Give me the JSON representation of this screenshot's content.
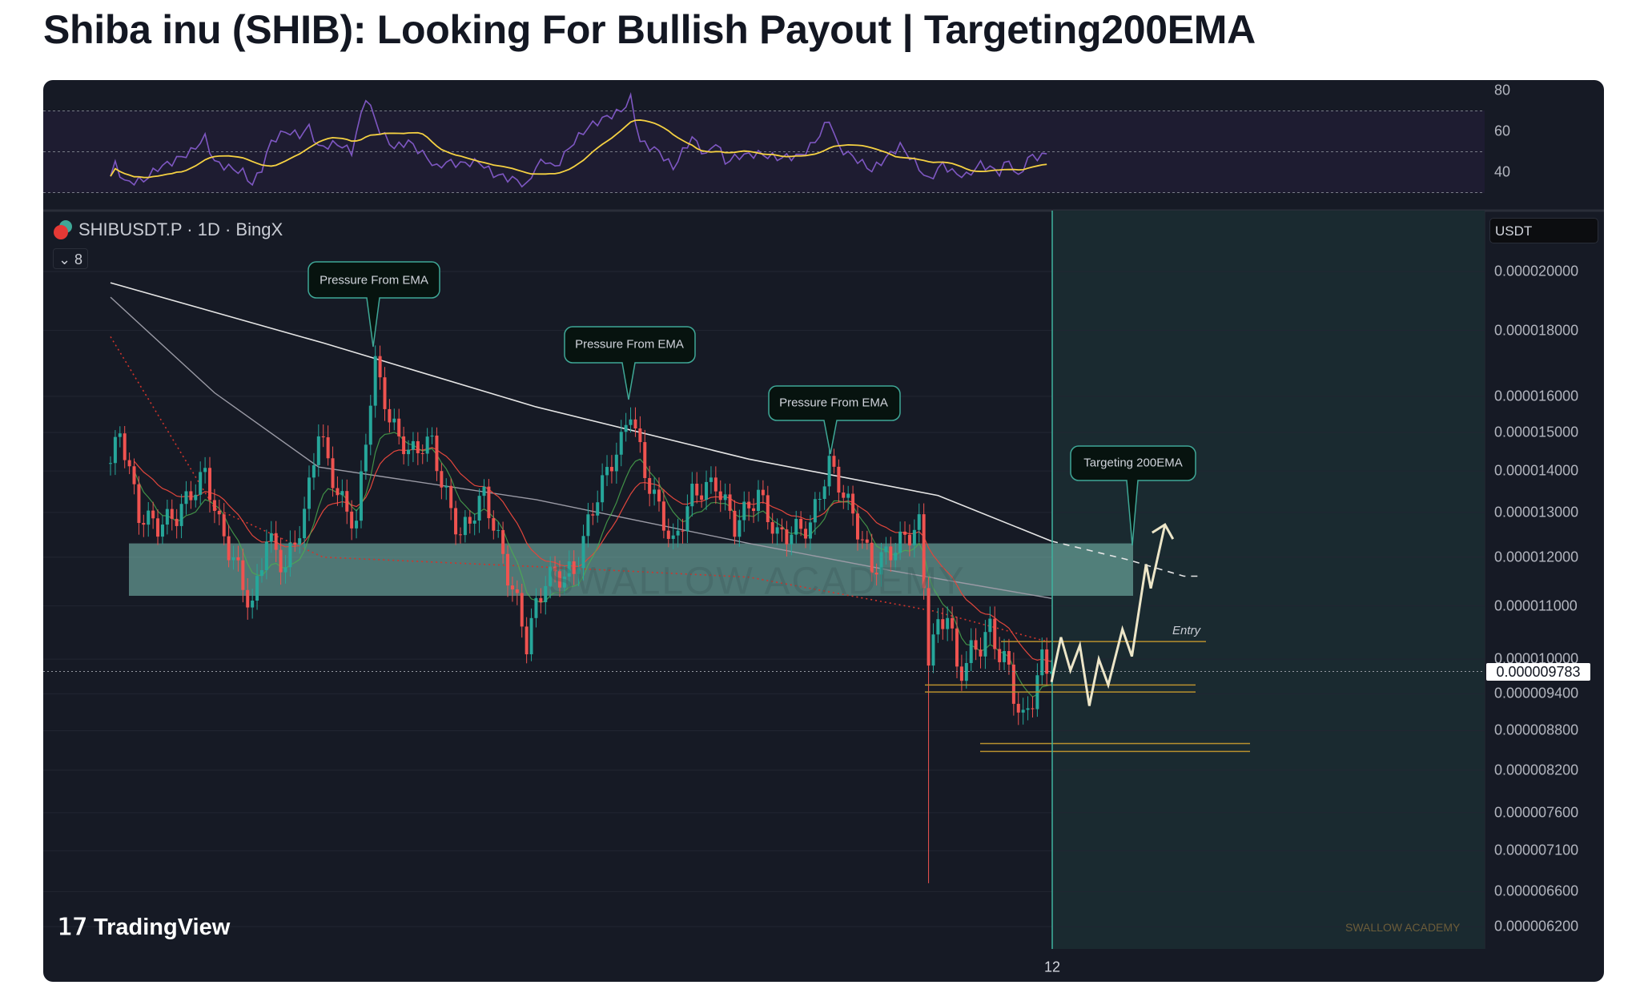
{
  "title": "Shiba inu (SHIB): Looking For Bullish Payout | Targeting200EMA",
  "legend": {
    "symbol": "SHIBUSDT.P · 1D · BingX",
    "indicator_count": "8",
    "currency": "USDT"
  },
  "current_price": "0.000009783",
  "annotations": {
    "pressure_1": "Pressure From EMA",
    "pressure_2": "Pressure From EMA",
    "pressure_3": "Pressure From EMA",
    "target": "Targeting 200EMA",
    "entry": "Entry",
    "watermark": "SWALLOW ACADEMY",
    "watermark_small": "SWALLOW ACADEMY"
  },
  "branding": {
    "logo": "TradingView"
  },
  "colors": {
    "up": "#26a69a",
    "down": "#ef5350",
    "rsi": "#7e57c2",
    "rsi_signal": "#f5d142",
    "zone": "#7fc4b8",
    "level": "#b8902e"
  },
  "chart_data": [
    {
      "type": "candlestick",
      "title": "SHIBUSDT.P · 1D · BingX",
      "ylabel": "USDT",
      "yscale": "log",
      "ylim": [
        6e-06,
        2.1e-05
      ],
      "y_ticks": [
        "0.000020000",
        "0.000018000",
        "0.000016000",
        "0.000015000",
        "0.000014000",
        "0.000013000",
        "0.000012000",
        "0.000011000",
        "0.000010000",
        "0.000009400",
        "0.000008800",
        "0.000008200",
        "0.000007600",
        "0.000007100",
        "0.000006600",
        "0.000006200"
      ],
      "x_ticks": [
        "12"
      ],
      "close_anchors_day_price_e9": [
        [
          0,
          14200
        ],
        [
          2,
          15040
        ],
        [
          6,
          12940
        ],
        [
          10,
          12700
        ],
        [
          14,
          12940
        ],
        [
          20,
          13940
        ],
        [
          23,
          12700
        ],
        [
          30,
          10930
        ],
        [
          33,
          12450
        ],
        [
          37,
          11770
        ],
        [
          41,
          12940
        ],
        [
          44,
          15040
        ],
        [
          48,
          13430
        ],
        [
          52,
          12700
        ],
        [
          56,
          16980
        ],
        [
          59,
          15330
        ],
        [
          63,
          14470
        ],
        [
          68,
          14760
        ],
        [
          70,
          13690
        ],
        [
          74,
          12450
        ],
        [
          79,
          13430
        ],
        [
          83,
          12000
        ],
        [
          88,
          10330
        ],
        [
          92,
          11560
        ],
        [
          98,
          11670
        ],
        [
          103,
          13430
        ],
        [
          108,
          14760
        ],
        [
          110,
          15610
        ],
        [
          113,
          13940
        ],
        [
          119,
          12230
        ],
        [
          123,
          13430
        ],
        [
          128,
          13690
        ],
        [
          132,
          12700
        ],
        [
          137,
          13430
        ],
        [
          141,
          12450
        ],
        [
          148,
          12700
        ],
        [
          152,
          14200
        ],
        [
          157,
          12940
        ],
        [
          161,
          11770
        ],
        [
          166,
          12230
        ],
        [
          171,
          12700
        ],
        [
          173,
          10130
        ],
        [
          177,
          10930
        ],
        [
          179,
          9760
        ],
        [
          186,
          10520
        ],
        [
          190,
          9760
        ],
        [
          193,
          8880
        ],
        [
          197,
          9930
        ],
        [
          199,
          9783
        ]
      ],
      "long_wick": {
        "day": 173,
        "low_e9": 6700
      },
      "ema200_day_price_e9": [
        [
          0,
          19600
        ],
        [
          45,
          17600
        ],
        [
          90,
          15700
        ],
        [
          135,
          14300
        ],
        [
          175,
          13400
        ],
        [
          199,
          12350
        ],
        [
          215,
          11950
        ],
        [
          227,
          11600
        ],
        [
          230,
          11600
        ]
      ],
      "ema_grey_day_price_e9": [
        [
          0,
          19100
        ],
        [
          22,
          16100
        ],
        [
          44,
          14100
        ],
        [
          90,
          13300
        ],
        [
          135,
          12300
        ],
        [
          166,
          11700
        ],
        [
          199,
          11150
        ]
      ],
      "ema_red_dotted_day_price_e9": [
        [
          0,
          17800
        ],
        [
          22,
          13100
        ],
        [
          45,
          12000
        ],
        [
          90,
          11800
        ],
        [
          135,
          11580
        ],
        [
          174,
          10900
        ],
        [
          199,
          10300
        ]
      ],
      "support_zone_e9": [
        11200,
        12300
      ],
      "entry_level_e9": 10320,
      "levels_e9": [
        9550,
        9430,
        8600,
        8480
      ],
      "projection_day_price_e9": [
        [
          199,
          9600
        ],
        [
          201,
          10400
        ],
        [
          203,
          9800
        ],
        [
          205,
          10250
        ],
        [
          207,
          9200
        ],
        [
          209,
          10000
        ],
        [
          211,
          9550
        ],
        [
          214,
          10550
        ],
        [
          216,
          10050
        ],
        [
          219,
          11850
        ],
        [
          220,
          11350
        ],
        [
          223,
          12720
        ]
      ]
    },
    {
      "type": "line",
      "title": "RSI",
      "ylim": [
        20,
        85
      ],
      "y_ticks": [
        "80",
        "60",
        "40"
      ],
      "bands": [
        30,
        50,
        70
      ],
      "rsi_day_value": [
        [
          0,
          38
        ],
        [
          1,
          44
        ],
        [
          3,
          35
        ],
        [
          7,
          36
        ],
        [
          10,
          42
        ],
        [
          13,
          45
        ],
        [
          17,
          50
        ],
        [
          20,
          57
        ],
        [
          22,
          45
        ],
        [
          24,
          43
        ],
        [
          28,
          40
        ],
        [
          30,
          34
        ],
        [
          32,
          42
        ],
        [
          34,
          55
        ],
        [
          37,
          60
        ],
        [
          40,
          58
        ],
        [
          42,
          62
        ],
        [
          44,
          52
        ],
        [
          48,
          54
        ],
        [
          51,
          50
        ],
        [
          54,
          77
        ],
        [
          57,
          60
        ],
        [
          60,
          52
        ],
        [
          63,
          55
        ],
        [
          67,
          47
        ],
        [
          69,
          42
        ],
        [
          71,
          45
        ],
        [
          74,
          44
        ],
        [
          78,
          45
        ],
        [
          81,
          39
        ],
        [
          86,
          36
        ],
        [
          88,
          33
        ],
        [
          90,
          43
        ],
        [
          92,
          46
        ],
        [
          94,
          42
        ],
        [
          98,
          55
        ],
        [
          101,
          62
        ],
        [
          104,
          66
        ],
        [
          108,
          70
        ],
        [
          110,
          76
        ],
        [
          112,
          55
        ],
        [
          116,
          50
        ],
        [
          119,
          42
        ],
        [
          121,
          50
        ],
        [
          123,
          57
        ],
        [
          126,
          48
        ],
        [
          128,
          55
        ],
        [
          130,
          45
        ],
        [
          133,
          48
        ],
        [
          137,
          49
        ],
        [
          141,
          47
        ],
        [
          146,
          48
        ],
        [
          149,
          55
        ],
        [
          152,
          66
        ],
        [
          154,
          52
        ],
        [
          158,
          46
        ],
        [
          161,
          41
        ],
        [
          164,
          47
        ],
        [
          167,
          53
        ],
        [
          170,
          45
        ],
        [
          173,
          36
        ],
        [
          176,
          44
        ],
        [
          178,
          40
        ],
        [
          181,
          38
        ],
        [
          184,
          44
        ],
        [
          188,
          40
        ],
        [
          190,
          46
        ],
        [
          192,
          37
        ],
        [
          194,
          47
        ],
        [
          197,
          48
        ],
        [
          198,
          49
        ]
      ]
    }
  ]
}
